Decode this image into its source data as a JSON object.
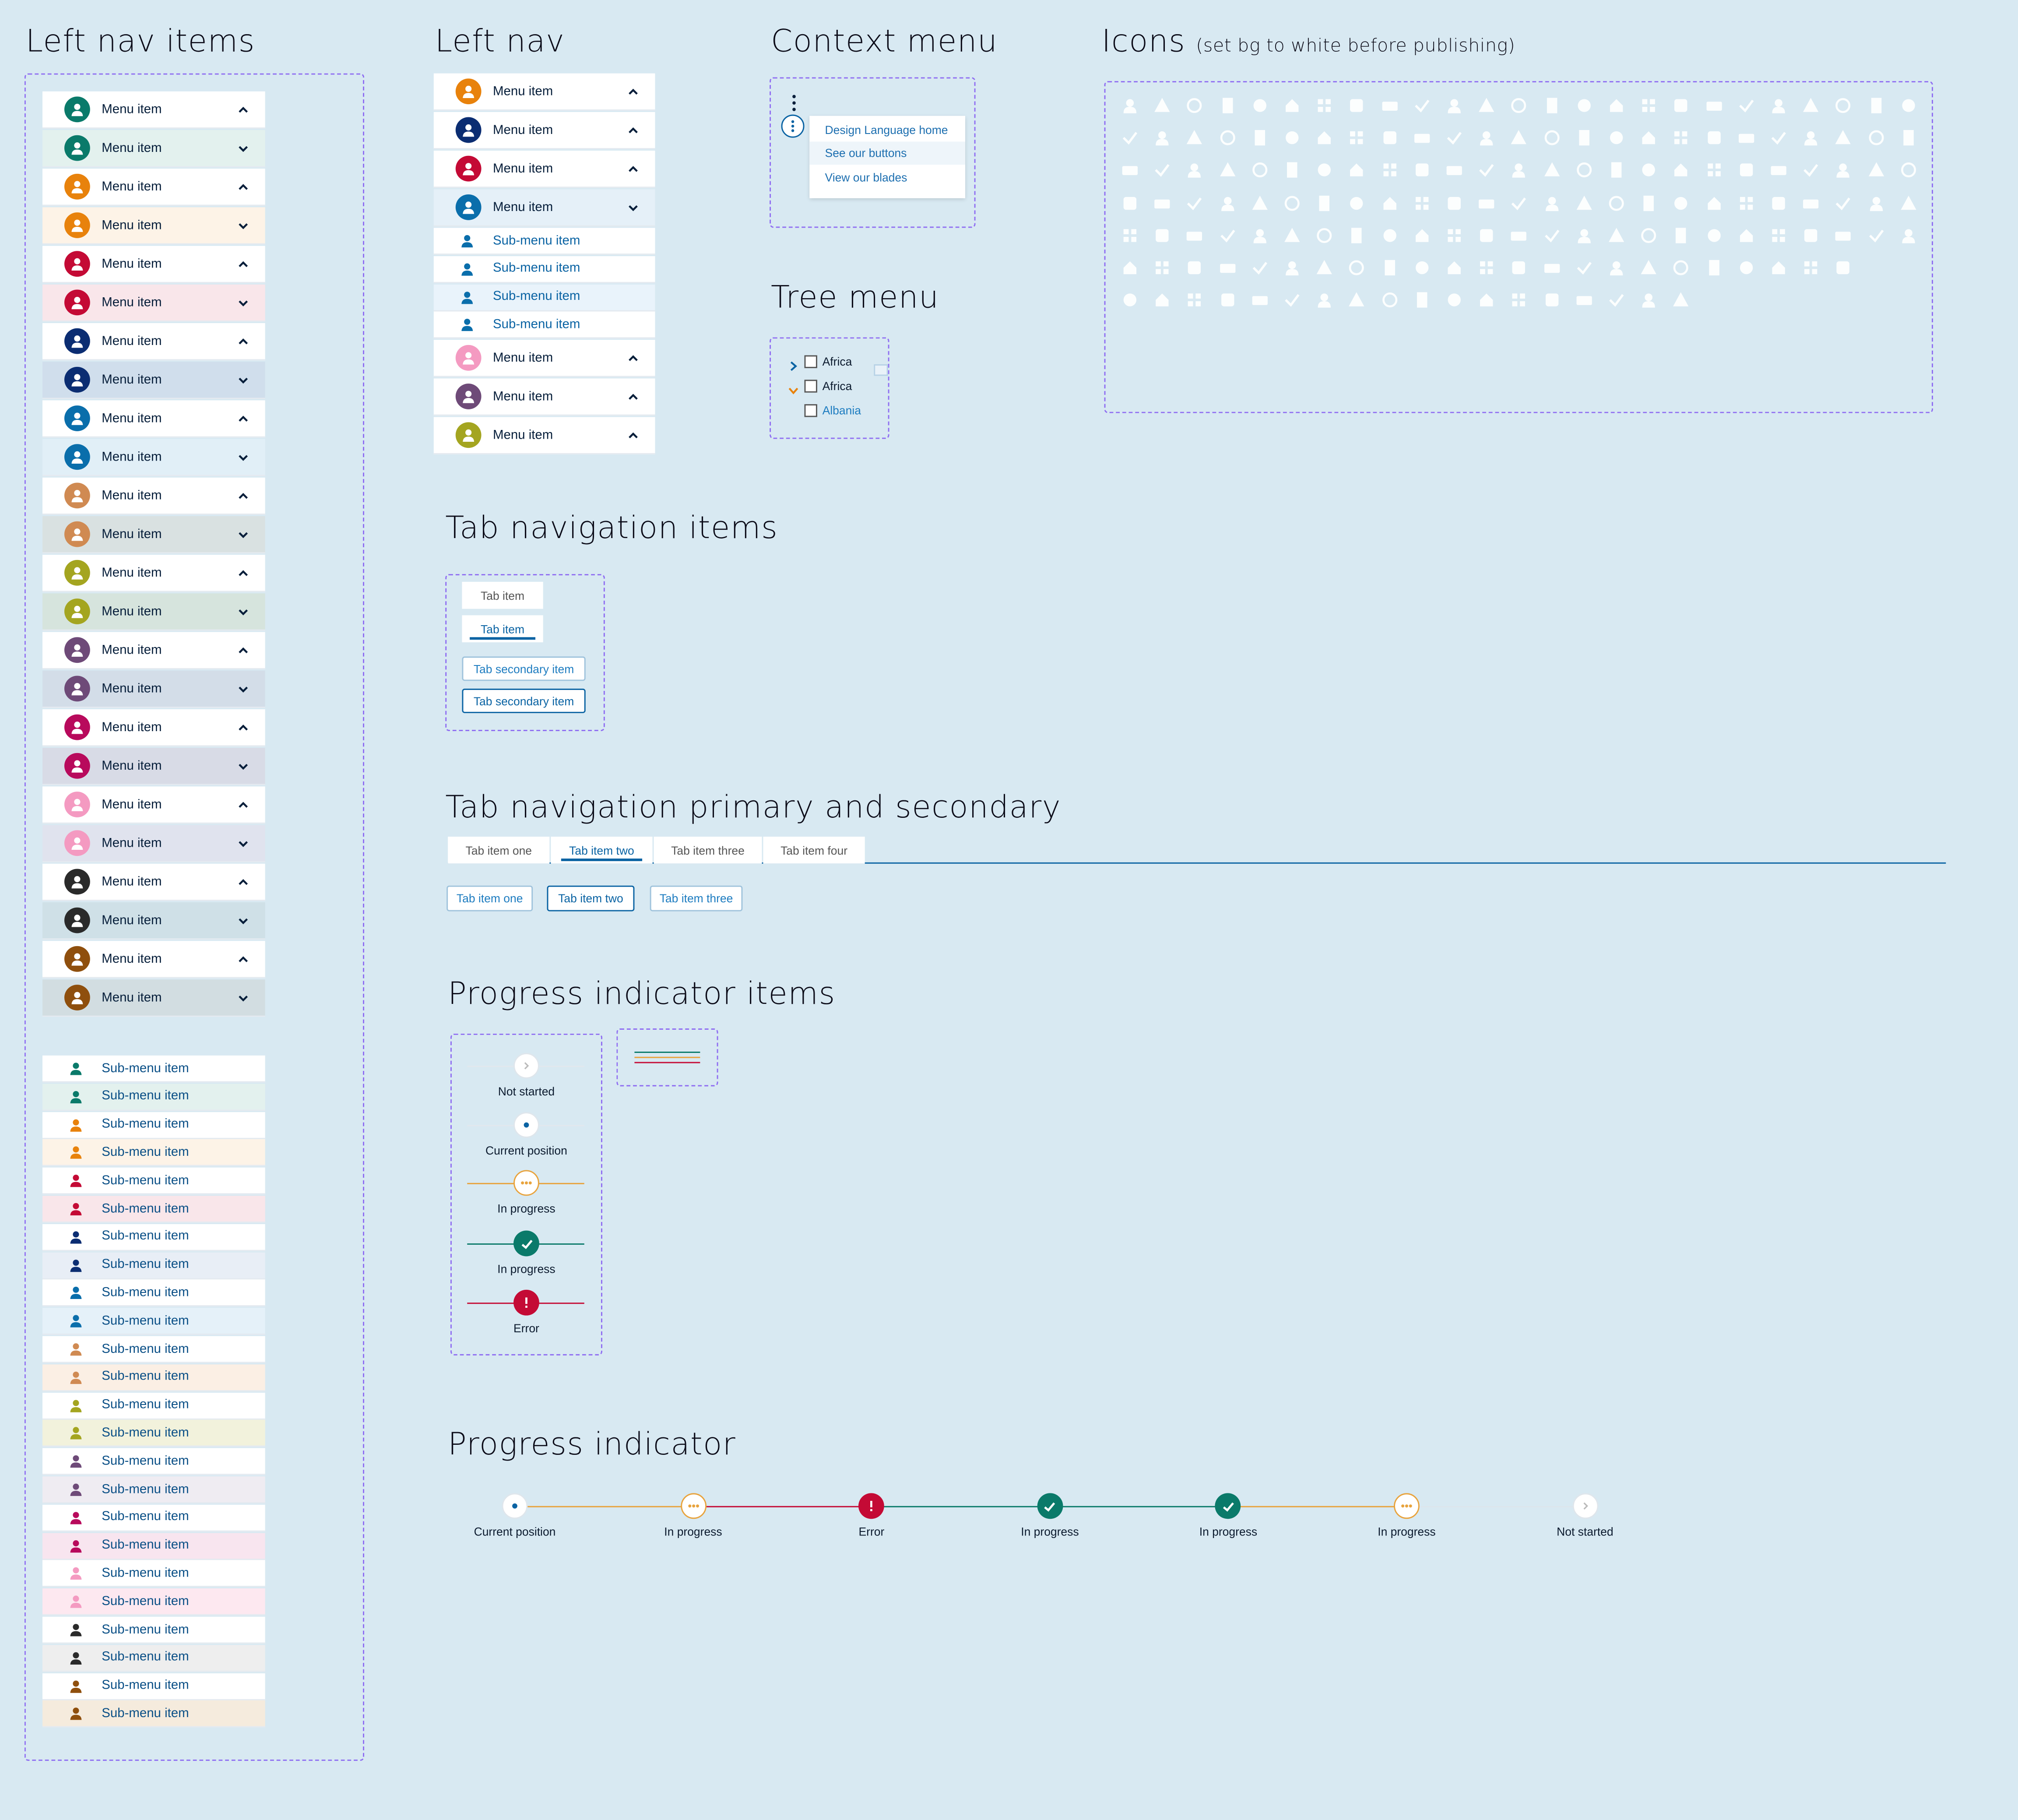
{
  "titles": {
    "left_nav_items": "Left nav items",
    "left_nav": "Left nav",
    "context_menu": "Context menu",
    "icons": "Icons",
    "icons_note": "(set bg to white before publishing)",
    "tree_menu": "Tree menu",
    "tab_nav_items": "Tab navigation items",
    "tab_nav_primary_secondary": "Tab navigation primary and secondary",
    "progress_items": "Progress indicator items",
    "progress": "Progress indicator"
  },
  "colors": {
    "background": "#d8e9f2",
    "dashed_border": "#8f6ef2",
    "link_blue": "#0a63a3",
    "progress_orange": "#e8a33d",
    "progress_green": "#0a7a6a",
    "progress_red": "#c40a35",
    "avatars": [
      "#0a7a6a",
      "#e8820c",
      "#c40a35",
      "#0b2d72",
      "#0a6eab",
      "#d08a52",
      "#a4a520",
      "#6e4a78",
      "#b80a5c",
      "#f49ac1",
      "#2a2a2a",
      "#8f4f0d"
    ],
    "expanded_tints": [
      "#e3f1ee",
      "#fdf3e7",
      "#f9e6ea",
      "#d0deec",
      "#e1eff7",
      "#d9e1e1",
      "#d6e4dd",
      "#d3dde8",
      "#d8dbe6",
      "#e0e3ee",
      "#cfe0e7",
      "#d2dde1"
    ],
    "sub_tints": [
      "#e3f1ee",
      "#fdf3e7",
      "#f9e6ea",
      "#e8eef6",
      "#e5f1f9",
      "#fbefe4",
      "#f2f2dc",
      "#efecf2",
      "#f8e5ef",
      "#fde8f0",
      "#eeeeee",
      "#f5ebdd"
    ]
  },
  "left_nav_items": {
    "menu_label": "Menu item",
    "sub_label": "Sub-menu item"
  },
  "left_nav": {
    "items": [
      {
        "label": "Menu item",
        "color": "#e8820c",
        "chevron": "up"
      },
      {
        "label": "Menu item",
        "color": "#0b2d72",
        "chevron": "up"
      },
      {
        "label": "Menu item",
        "color": "#c40a35",
        "chevron": "up"
      },
      {
        "label": "Menu item",
        "color": "#0a6eab",
        "chevron": "down"
      }
    ],
    "sub_items": [
      "Sub-menu item",
      "Sub-menu item",
      "Sub-menu item",
      "Sub-menu item"
    ],
    "items_after": [
      {
        "label": "Menu item",
        "color": "#f49ac1",
        "chevron": "up"
      },
      {
        "label": "Menu item",
        "color": "#6e4a78",
        "chevron": "up"
      },
      {
        "label": "Menu item",
        "color": "#a4a520",
        "chevron": "up"
      }
    ]
  },
  "context_menu": {
    "items": [
      "Design Language home",
      "See our buttons",
      "View our blades"
    ]
  },
  "tree_menu": {
    "items": [
      {
        "label": "Africa",
        "state": "collapsed"
      },
      {
        "label": "Africa",
        "state": "expanded"
      },
      {
        "label": "Albania",
        "state": "child"
      }
    ]
  },
  "tab_nav_items": {
    "tabs": [
      "Tab item",
      "Tab item"
    ],
    "secondary": [
      "Tab secondary item",
      "Tab secondary item"
    ]
  },
  "tab_nav": {
    "primary": [
      "Tab item one",
      "Tab item two",
      "Tab item three",
      "Tab item four"
    ],
    "primary_active": 1,
    "secondary": [
      "Tab item one",
      "Tab item two",
      "Tab item three"
    ],
    "secondary_active": 1
  },
  "progress_items": [
    "Not started",
    "Current position",
    "In progress",
    "In progress",
    "Error"
  ],
  "progress": {
    "steps": [
      {
        "label": "Current position",
        "state": "current"
      },
      {
        "label": "In progress",
        "state": "in-progress"
      },
      {
        "label": "Error",
        "state": "error"
      },
      {
        "label": "In progress",
        "state": "done"
      },
      {
        "label": "In progress",
        "state": "done"
      },
      {
        "label": "In progress",
        "state": "in-progress"
      },
      {
        "label": "Not started",
        "state": "not-started"
      }
    ]
  },
  "icons": {
    "rows": [
      [
        "person-icon",
        "person-add-icon",
        "people-icon",
        "person-key-icon",
        "fingerprint-icon",
        "gear-icon",
        "alarm-icon",
        "trend-icon",
        "verified-icon",
        "eye-icon",
        "lock-icon",
        "lightbulb-icon",
        "percent-icon",
        "dollar-icon",
        "arrow-left-icon",
        "arrow-right-icon",
        "arrow-down-icon",
        "arrow-up-icon",
        "pie-chart-icon",
        "factory-icon",
        "building-icon",
        "tools-icon",
        "store-icon",
        "external-link-icon",
        "share-icon"
      ],
      [
        "cloud-icon",
        "block-icon",
        "no-entry-icon",
        "bank-icon",
        "bell-icon",
        "hierarchy-icon",
        "megaphone-icon",
        "heart-icon",
        "double-check-icon",
        "cart-icon",
        "shuffle-icon",
        "clock-icon",
        "calendar-icon",
        "calendar-check-icon",
        "check-icon",
        "close-icon",
        "plus-icon",
        "minus-icon",
        "credit-card-icon",
        "history-icon",
        "restore-icon",
        "flag-icon",
        "checklist-icon",
        "box-icon",
        "printer-icon"
      ],
      [
        "home-icon",
        "briefcase-icon",
        "globe-icon",
        "archive-icon",
        "calendar-blank-icon",
        "calendar-day-icon",
        "bar-chart-icon",
        "widgets-icon",
        "dashboard-icon",
        "save-icon",
        "badge-icon",
        "grid-card-icon",
        "clipboard-icon",
        "document-icon",
        "file-icon",
        "list-icon",
        "align-left-icon",
        "article-icon",
        "align-center-icon",
        "menu-icon",
        "dots-grid-icon",
        "apps-icon",
        "dots-vertical-icon",
        "table-icon",
        "sparkle-icon"
      ],
      [
        "crown-icon",
        "qr-code-icon",
        "grid-icon",
        "puzzle-icon",
        "filter-icon",
        "pencil-icon",
        "download-icon",
        "upload-icon",
        "mail-open-icon",
        "mail-icon",
        "globe-alt-icon",
        "diamond-icon",
        "thumb-up-icon",
        "thumb-down-icon",
        "folder-icon",
        "filter-list-icon",
        "asterisk-icon",
        "trash-icon",
        "window-icon",
        "inbox-icon",
        "analytics-icon",
        "touch-icon",
        "hand-icon",
        "refresh-euro-icon",
        "location-person-icon"
      ],
      [
        "loading-icon",
        "star-icon",
        "notes-icon",
        "link-icon",
        "widget-add-icon",
        "airplane-icon",
        "shield-icon",
        "alert-circle-icon",
        "sliders-icon",
        "warning-icon",
        "case-icon",
        "hub-icon",
        "pin-icon",
        "sync-icon",
        "line-chart-icon",
        "idea-icon",
        "gauge-icon",
        "font-icon",
        "check-circle-icon",
        "toggle-icon",
        "double-chevron-icon",
        "person-voice-icon",
        "smile-icon",
        "search-icon",
        "nodes-icon"
      ],
      [
        "robot-icon",
        "task-icon",
        "desktop-icon",
        "camera-icon",
        "cube-icon",
        "truck-icon",
        "layers-icon",
        "copy-icon",
        "grid-dense-icon",
        "wave-icon",
        "network-icon",
        "laptop-alt-icon",
        "laptop-icon",
        "power-icon",
        "text-clear-icon",
        "shield-check-icon",
        "form-icon",
        "fullscreen-icon",
        "focus-icon",
        "plug-icon",
        "card-icon",
        "book-icon",
        "unfold-icon"
      ],
      [
        "location-icon",
        "emoji-icon",
        "info-icon",
        "duplicate-icon",
        "comment-icon",
        "keypad-icon",
        "server-icon",
        "info-circle-icon",
        "money-icon",
        "stack-icon",
        "library-icon",
        "wrench-icon",
        "crossed-tools-icon",
        "bag-icon",
        "download-tray-icon",
        "upload-tray-icon",
        "image-icon",
        "copy-alt-icon"
      ]
    ]
  }
}
